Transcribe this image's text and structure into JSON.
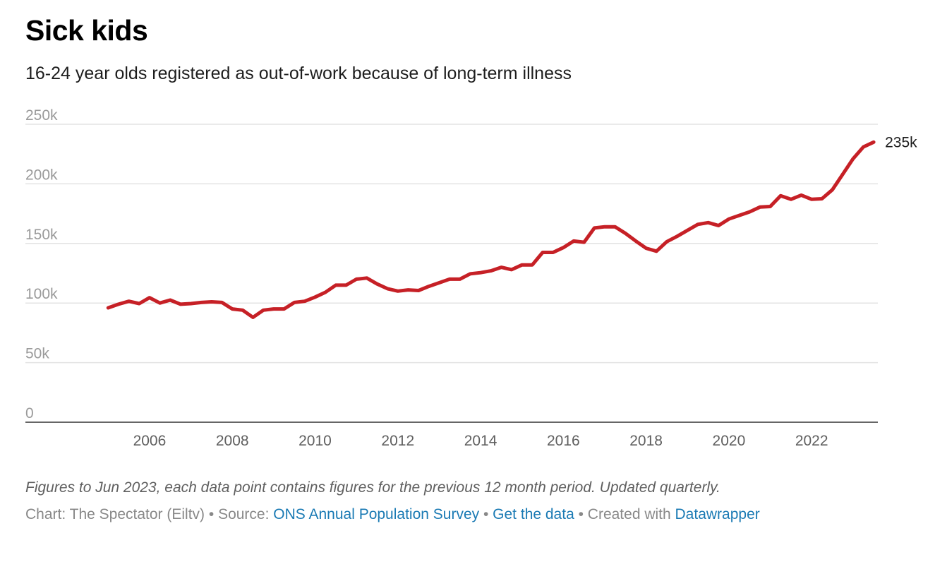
{
  "title": "Sick kids",
  "subtitle": "16-24 year olds registered as out-of-work because of long-term illness",
  "chart_data": {
    "type": "line",
    "series": [
      {
        "color": "#c62026",
        "end_label": "235k",
        "x": [
          2005.0,
          2005.25,
          2005.5,
          2005.75,
          2006.0,
          2006.25,
          2006.5,
          2006.75,
          2007.0,
          2007.25,
          2007.5,
          2007.75,
          2008.0,
          2008.25,
          2008.5,
          2008.75,
          2009.0,
          2009.25,
          2009.5,
          2009.75,
          2010.0,
          2010.25,
          2010.5,
          2010.75,
          2011.0,
          2011.25,
          2011.5,
          2011.75,
          2012.0,
          2012.25,
          2012.5,
          2012.75,
          2013.0,
          2013.25,
          2013.5,
          2013.75,
          2014.0,
          2014.25,
          2014.5,
          2014.75,
          2015.0,
          2015.25,
          2015.5,
          2015.75,
          2016.0,
          2016.25,
          2016.5,
          2016.75,
          2017.0,
          2017.25,
          2017.5,
          2017.75,
          2018.0,
          2018.25,
          2018.5,
          2018.75,
          2019.0,
          2019.25,
          2019.5,
          2019.75,
          2020.0,
          2020.25,
          2020.5,
          2020.75,
          2021.0,
          2021.25,
          2021.5,
          2021.75,
          2022.0,
          2022.25,
          2022.5,
          2022.75,
          2023.0,
          2023.25,
          2023.5
        ],
        "values": [
          96000,
          99000,
          101500,
          99500,
          104500,
          100000,
          102500,
          99000,
          99500,
          100500,
          101000,
          100500,
          95000,
          94000,
          88000,
          94000,
          95000,
          95000,
          100500,
          101500,
          105000,
          109000,
          115000,
          115000,
          120000,
          121000,
          116000,
          112000,
          110000,
          111000,
          110500,
          114000,
          117000,
          120000,
          120000,
          124500,
          125500,
          127000,
          130000,
          128000,
          132000,
          132000,
          142500,
          142500,
          146500,
          152000,
          151000,
          163000,
          164000,
          164000,
          158500,
          152000,
          146000,
          143500,
          151500,
          156000,
          161000,
          166000,
          167500,
          165000,
          170500,
          173500,
          176500,
          180500,
          181000,
          190000,
          187000,
          190500,
          187000,
          187500,
          195000,
          208000,
          221000,
          231000,
          235000
        ]
      }
    ],
    "xlabels": [
      "2006",
      "2008",
      "2010",
      "2012",
      "2014",
      "2016",
      "2018",
      "2020",
      "2022"
    ],
    "xlabel_values": [
      2006,
      2008,
      2010,
      2012,
      2014,
      2016,
      2018,
      2020,
      2022
    ],
    "xlim": [
      2003.0,
      2023.6
    ],
    "ylim": [
      0,
      250000
    ],
    "yticks": [
      0,
      50000,
      100000,
      150000,
      200000,
      250000
    ],
    "ylabels": [
      "0",
      "50k",
      "100k",
      "150k",
      "200k",
      "250k"
    ],
    "grid": true
  },
  "notes": "Figures to Jun 2023, each data point contains figures for the previous 12 month period. Updated quarterly.",
  "footer": {
    "chart_credit": "Chart: The Spectator (Eiltv)",
    "sep1": " • Source: ",
    "source_link": "ONS Annual Population Survey",
    "sep2": " • ",
    "data_link": "Get the data",
    "sep3": " • Created with ",
    "tool_link": "Datawrapper"
  }
}
